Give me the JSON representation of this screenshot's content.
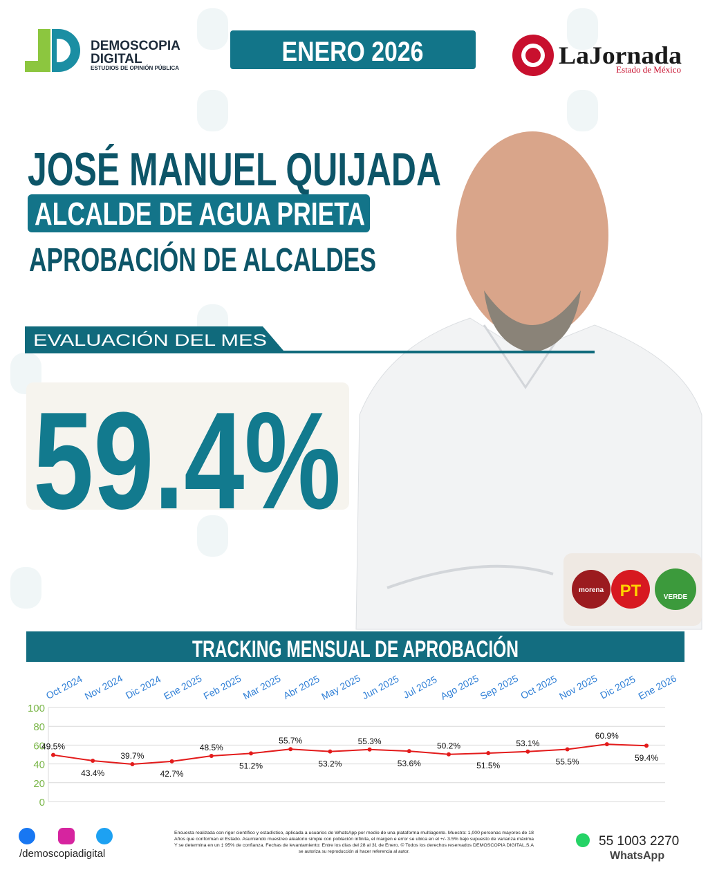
{
  "header": {
    "brand": "DEMOSCOPIA",
    "brand_line2": "DIGITAL",
    "tagline": "ESTUDIOS DE OPINIÓN PÚBLICA",
    "date": "ENERO 2026",
    "newspaper": "LaJornada",
    "newspaper_region": "Estado de México"
  },
  "profile": {
    "name": "JOSÉ MANUEL QUIJADA",
    "role": "ALCALDE DE AGUA PRIETA",
    "survey": "APROBACIÓN DE ALCALDES"
  },
  "evaluation": {
    "label": "EVALUACIÓN DEL MES",
    "value": "59.4%"
  },
  "parties": [
    "morena",
    "PT",
    "VERDE"
  ],
  "chart_data": {
    "type": "line",
    "title": "TRACKING MENSUAL DE APROBACIÓN",
    "categories": [
      "Oct 2024",
      "Nov 2024",
      "Dic 2024",
      "Ene 2025",
      "Feb 2025",
      "Mar 2025",
      "Abr 2025",
      "May 2025",
      "Jun 2025",
      "Jul 2025",
      "Ago 2025",
      "Sep 2025",
      "Oct 2025",
      "Nov 2025",
      "Dic 2025",
      "Ene 2026"
    ],
    "values": [
      49.5,
      43.4,
      39.7,
      42.7,
      48.5,
      51.2,
      55.7,
      53.2,
      55.3,
      53.6,
      50.2,
      51.5,
      53.1,
      55.5,
      60.9,
      59.4
    ],
    "value_labels": [
      "49.5%",
      "43.4%",
      "39.7%",
      "42.7%",
      "48.5%",
      "51.2%",
      "55.7%",
      "53.2%",
      "55.3%",
      "53.6%",
      "50.2%",
      "51.5%",
      "53.1%",
      "55.5%",
      "60.9%",
      "59.4%"
    ],
    "color": "#e31b1b",
    "ylim": [
      0,
      100
    ],
    "yticks": [
      0,
      20,
      40,
      60,
      80,
      100
    ],
    "grid": true
  },
  "footer": {
    "social": "/demoscopiadigital",
    "disclaimer": [
      "Encuesta realizada con rigor científico y estadístico, aplicada a usuarios de WhatsApp por medio de una plataforma multiagente. Muestra: 1,000 personas mayores de 18",
      "Años que conforman el Estado. Asumiendo muestreo aleatorio simple con población infinita, el margen e error se ubica en el +/- 3.5% bajo supuesto de varianza máxima",
      "Y se determina en un ‡ 95% de confianza. Fechas de levantamiento: Entre los días del 28 al 31 de Enero. © Todos los derechos reservados DEMOSCOPIA DIGITAL,S.A",
      "se autoriza su reproducción al hacer referencia al autor."
    ],
    "phone": "55 1003 2270",
    "whatsapp": "WhatsApp"
  }
}
